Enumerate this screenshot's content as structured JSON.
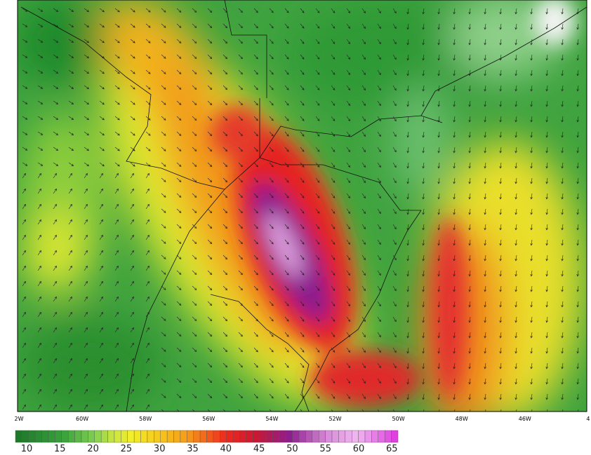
{
  "map": {
    "x_labels": [
      "2W",
      "60W",
      "58W",
      "56W",
      "54W",
      "52W",
      "50W",
      "48W",
      "46W",
      "4"
    ],
    "colorbar": {
      "labels": [
        "10",
        "15",
        "20",
        "25",
        "30",
        "35",
        "40",
        "45",
        "50",
        "55",
        "60",
        "65"
      ]
    }
  }
}
